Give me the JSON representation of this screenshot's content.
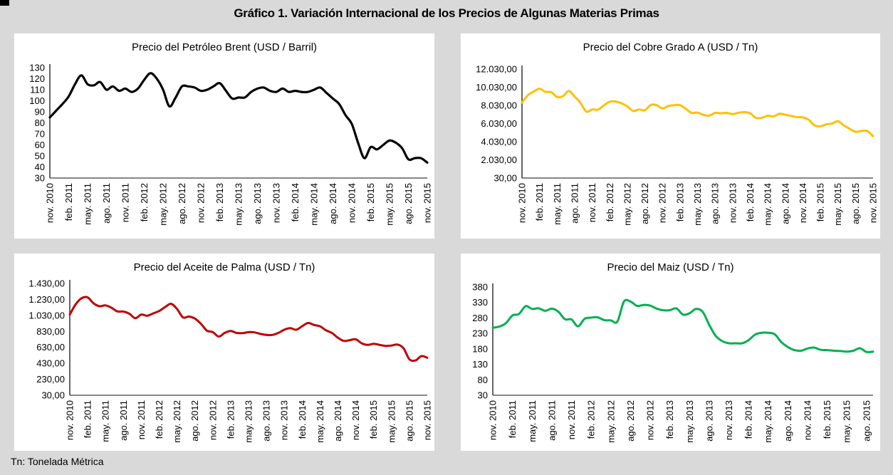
{
  "page": {
    "title": "Gráfico 1. Variación Internacional de los Precios de Algunas Materias Primas",
    "footnote": "Tn: Tonelada Métrica",
    "background_color": "#d9d9d9",
    "panel_color": "#ffffff",
    "axis_color": "#3f3f3f",
    "text_color": "#000000"
  },
  "chart_data": [
    {
      "id": "brent",
      "type": "line",
      "title": "Precio del Petróleo Brent (USD / Barril)",
      "line_color": "#000000",
      "line_width": 3.2,
      "grid": false,
      "legend": "none",
      "ylim": [
        30,
        130
      ],
      "yticks": [
        130,
        120,
        110,
        100,
        90,
        80,
        70,
        60,
        50,
        40,
        30
      ],
      "ytick_labels": [
        "130",
        "120",
        "110",
        "100",
        "90",
        "80",
        "70",
        "60",
        "50",
        "40",
        "30"
      ],
      "x_tick_every": 3,
      "x_tick_labels": [
        "nov. 2010",
        "feb. 2011",
        "may. 2011",
        "ago. 2011",
        "nov. 2011",
        "feb. 2012",
        "may. 2012",
        "ago. 2012",
        "nov. 2012",
        "feb. 2013",
        "may. 2013",
        "ago. 2013",
        "nov. 2013",
        "feb. 2014",
        "may. 2014",
        "ago. 2014",
        "nov. 2014",
        "feb. 2015",
        "may. 2015",
        "ago. 2015",
        "nov. 2015"
      ],
      "x_range": "monthly nov. 2010 - nov. 2015",
      "values": [
        85,
        91,
        97,
        104,
        115,
        123,
        115,
        114,
        117,
        110,
        113,
        109,
        111,
        108,
        111,
        119,
        125,
        120,
        110,
        95,
        103,
        113,
        113,
        112,
        109,
        110,
        113,
        116,
        109,
        102,
        103,
        103,
        108,
        111,
        112,
        109,
        108,
        111,
        108,
        109,
        108,
        108,
        110,
        112,
        107,
        102,
        97,
        87,
        79,
        62,
        48,
        58,
        56,
        60,
        64,
        62,
        57,
        47,
        48,
        48,
        44
      ]
    },
    {
      "id": "cobre",
      "type": "line",
      "title": "Precio del Cobre Grado A (USD / Tn)",
      "line_color": "#FFC000",
      "line_width": 3,
      "grid": false,
      "legend": "none",
      "ylim": [
        30,
        12030
      ],
      "yticks": [
        12030,
        10030,
        8030,
        6030,
        4030,
        2030,
        30
      ],
      "ytick_labels": [
        "12.030,00",
        "10.030,00",
        "8.030,00",
        "6.030,00",
        "4.030,00",
        "2.030,00",
        "30,00"
      ],
      "x_tick_every": 3,
      "x_tick_labels": [
        "nov. 2010",
        "feb. 2011",
        "may. 2011",
        "ago. 2011",
        "nov. 2011",
        "feb. 2012",
        "may. 2012",
        "ago. 2012",
        "nov. 2012",
        "feb. 2013",
        "may. 2013",
        "ago. 2013",
        "nov. 2013",
        "feb. 2014",
        "may. 2014",
        "ago. 2014",
        "nov. 2014",
        "feb. 2015",
        "may. 2015",
        "ago. 2015",
        "nov. 2015"
      ],
      "x_range": "monthly nov. 2010 - nov. 2015",
      "values": [
        8350,
        9150,
        9555,
        9870,
        9530,
        9490,
        8960,
        9045,
        9620,
        9000,
        8300,
        7350,
        7580,
        7565,
        8040,
        8440,
        8460,
        8260,
        7920,
        7420,
        7585,
        7500,
        8075,
        8060,
        7700,
        7965,
        8045,
        8060,
        7645,
        7205,
        7240,
        7000,
        6900,
        7195,
        7160,
        7205,
        7070,
        7215,
        7290,
        7150,
        6650,
        6675,
        6890,
        6820,
        7115,
        7000,
        6870,
        6740,
        6710,
        6445,
        5830,
        5730,
        5940,
        6040,
        6295,
        5835,
        5455,
        5125,
        5215,
        5215,
        4640
      ]
    },
    {
      "id": "palma",
      "type": "line",
      "title": "Precio del Aceite de Palma (USD / Tn)",
      "line_color": "#C00000",
      "line_width": 3,
      "grid": false,
      "legend": "none",
      "ylim": [
        30,
        1430
      ],
      "yticks": [
        1430,
        1230,
        1030,
        830,
        630,
        430,
        230,
        30
      ],
      "ytick_labels": [
        "1.430,00",
        "1.230,00",
        "1.030,00",
        "830,00",
        "630,00",
        "430,00",
        "230,00",
        "30,00"
      ],
      "x_tick_every": 3,
      "x_tick_labels": [
        "nov. 2010",
        "feb. 2011",
        "may. 2011",
        "ago. 2011",
        "nov. 2011",
        "feb. 2012",
        "may. 2012",
        "ago. 2012",
        "nov. 2012",
        "feb. 2013",
        "may. 2013",
        "ago. 2013",
        "nov. 2013",
        "feb. 2014",
        "may. 2014",
        "ago. 2014",
        "nov. 2014",
        "feb. 2015",
        "may. 2015",
        "ago. 2015",
        "nov. 2015"
      ],
      "x_range": "monthly nov. 2010 - nov. 2015",
      "values": [
        1040,
        1170,
        1245,
        1255,
        1180,
        1145,
        1155,
        1125,
        1080,
        1078,
        1050,
        995,
        1040,
        1025,
        1055,
        1085,
        1135,
        1175,
        1110,
        1005,
        1015,
        990,
        925,
        840,
        820,
        765,
        810,
        835,
        810,
        808,
        820,
        817,
        798,
        785,
        785,
        810,
        850,
        870,
        850,
        895,
        935,
        910,
        893,
        843,
        810,
        750,
        710,
        720,
        730,
        680,
        660,
        675,
        660,
        648,
        652,
        665,
        620,
        480,
        465,
        520,
        500
      ]
    },
    {
      "id": "maiz",
      "type": "line",
      "title": "Precio del Maiz (USD / Tn)",
      "line_color": "#00B050",
      "line_width": 3,
      "grid": false,
      "legend": "none",
      "ylim": [
        30,
        380
      ],
      "yticks": [
        380,
        330,
        280,
        230,
        180,
        130,
        80,
        30
      ],
      "ytick_labels": [
        "380",
        "330",
        "280",
        "230",
        "180",
        "130",
        "80",
        "30"
      ],
      "x_tick_every": 3,
      "x_tick_labels": [
        "nov. 2010",
        "feb. 2011",
        "may. 2011",
        "ago. 2011",
        "nov. 2011",
        "feb. 2012",
        "may. 2012",
        "ago. 2012",
        "nov. 2012",
        "feb. 2013",
        "may. 2013",
        "ago. 2013",
        "nov. 2013",
        "feb. 2014",
        "may. 2014",
        "ago. 2014",
        "nov. 2014",
        "feb. 2015",
        "may. 2015",
        "ago. 2015"
      ],
      "x_range": "monthly nov. 2010 - sep. 2015",
      "values": [
        248,
        252,
        263,
        288,
        293,
        318,
        309,
        311,
        303,
        310,
        300,
        276,
        275,
        253,
        277,
        281,
        282,
        273,
        272,
        268,
        333,
        333,
        319,
        322,
        320,
        310,
        305,
        305,
        311,
        291,
        295,
        309,
        300,
        258,
        222,
        205,
        198,
        198,
        198,
        208,
        226,
        232,
        232,
        227,
        202,
        186,
        176,
        174,
        181,
        184,
        177,
        176,
        174,
        173,
        171,
        174,
        182,
        170,
        171
      ]
    }
  ]
}
